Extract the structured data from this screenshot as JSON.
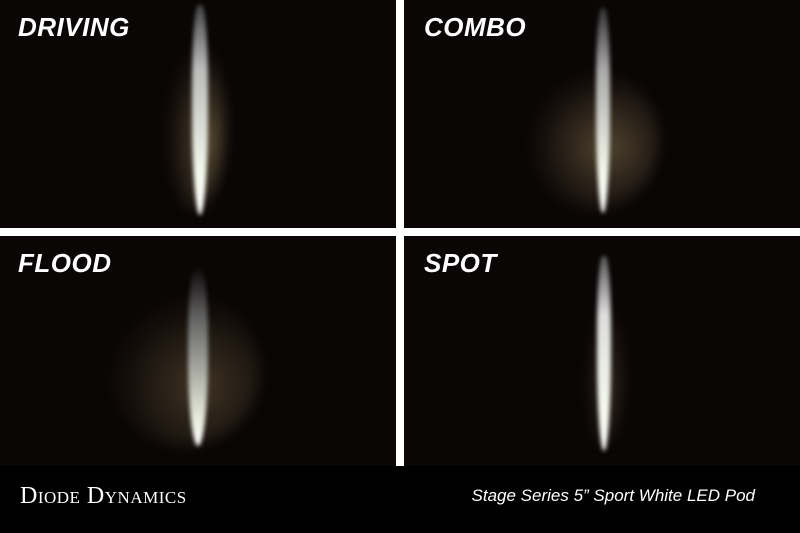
{
  "panels": [
    {
      "label": "DRIVING"
    },
    {
      "label": "COMBO"
    },
    {
      "label": "FLOOD"
    },
    {
      "label": "SPOT"
    }
  ],
  "footer": {
    "brand": "Diode Dynamics",
    "product": "Stage Series 5” Sport White LED Pod"
  },
  "colors": {
    "background": "#0a0606",
    "gutter": "#ffffff",
    "text": "#ffffff"
  }
}
